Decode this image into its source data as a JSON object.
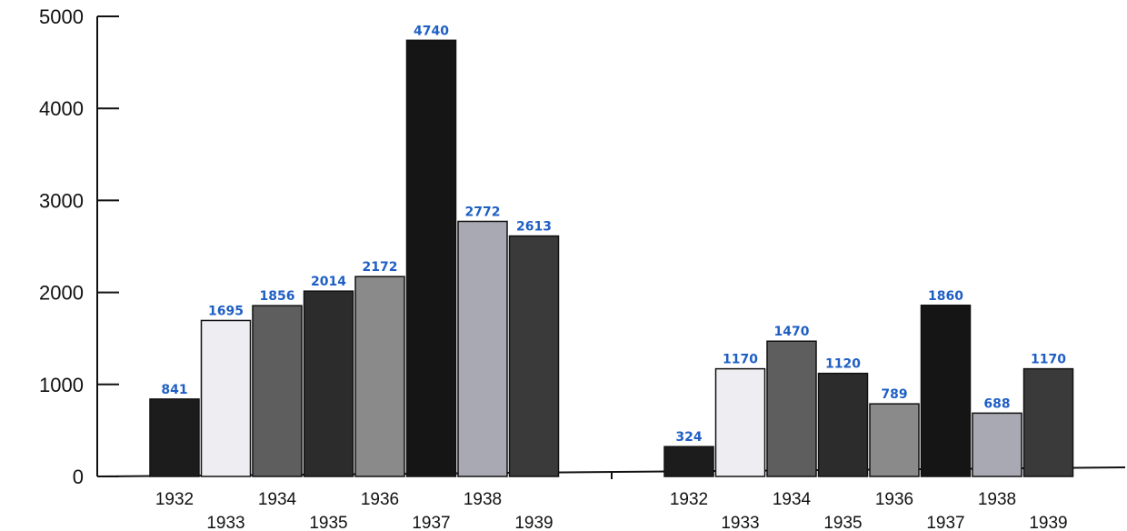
{
  "chart_data": {
    "type": "bar",
    "title": "",
    "xlabel": "",
    "ylabel": "",
    "ylim": [
      0,
      5000
    ],
    "yticks": [
      0,
      1000,
      2000,
      3000,
      4000,
      5000
    ],
    "ytick_labels": [
      "0",
      "1000",
      "2000",
      "3000",
      "4000",
      "5000"
    ],
    "grid": false,
    "legend": false,
    "groups": [
      {
        "categories": [
          "1932",
          "1933",
          "1934",
          "1935",
          "1936",
          "1937",
          "1938",
          "1939"
        ],
        "values": [
          841,
          1695,
          1856,
          2014,
          2172,
          4740,
          2772,
          2613
        ],
        "value_labels": [
          "841",
          "1695",
          "1856",
          "2014",
          "2172",
          "4740",
          "2772",
          "2613"
        ]
      },
      {
        "categories": [
          "1932",
          "1933",
          "1934",
          "1935",
          "1936",
          "1937",
          "1938",
          "1939"
        ],
        "values": [
          324,
          1170,
          1470,
          1120,
          789,
          1860,
          688,
          1170
        ],
        "value_labels": [
          "324",
          "1170",
          "1470",
          "1120",
          "789",
          "1860",
          "688",
          "1170"
        ]
      }
    ],
    "bar_colors": [
      "#1c1c1c",
      "#eeeef2",
      "#5e5e5e",
      "#2c2c2c",
      "#8a8a8a",
      "#151515",
      "#a9a9b3",
      "#3a3a3a"
    ],
    "value_label_color": "#1f5fc4"
  }
}
